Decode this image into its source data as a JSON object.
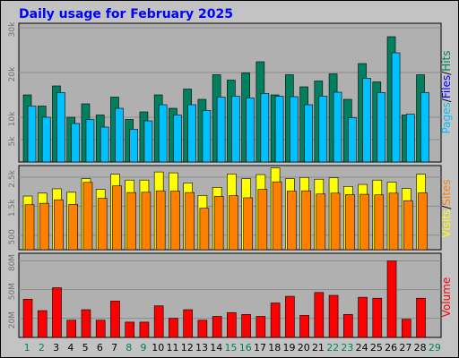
{
  "colors": {
    "background": "#c3c3c3",
    "panel": "#b0b0b0",
    "pages": "#00c0ff",
    "files": "#0000ff",
    "hits": "#00805f",
    "visits": "#ffff00",
    "sites": "#ff8000",
    "volume": "#ff0000",
    "weekday_label": "#000000",
    "weekend_label": "#00805f",
    "title": "#0000ff"
  },
  "chart_data": {
    "type": "bar",
    "title": "Daily usage for February 2025",
    "categories": [
      "1",
      "2",
      "3",
      "4",
      "5",
      "6",
      "7",
      "8",
      "9",
      "10",
      "11",
      "12",
      "13",
      "14",
      "15",
      "16",
      "17",
      "18",
      "19",
      "20",
      "21",
      "22",
      "23",
      "24",
      "25",
      "26",
      "27",
      "28",
      "29"
    ],
    "weekend_days": [
      "1",
      "2",
      "8",
      "9",
      "15",
      "16",
      "22",
      "23",
      "29"
    ],
    "panels": [
      {
        "name": "hits",
        "legend": [
          {
            "text": "Pages",
            "color": "#00c0ff"
          },
          {
            "text": "/",
            "color": "#000000"
          },
          {
            "text": "Files",
            "color": "#0000ff"
          },
          {
            "text": "/",
            "color": "#000000"
          },
          {
            "text": "Hits",
            "color": "#00805f"
          }
        ],
        "yticks": [
          "5k",
          "10k",
          "20k",
          "30k"
        ],
        "ytick_values": [
          5000,
          10000,
          20000,
          30000
        ],
        "ylim": [
          0,
          31000
        ],
        "series": [
          {
            "name": "Hits",
            "color": "#00805f",
            "values": [
              15000,
              12500,
              17000,
              10000,
              13000,
              10500,
              14500,
              9500,
              11200,
              15000,
              12000,
              16300,
              14000,
              19500,
              18300,
              19900,
              22400,
              15000,
              19500,
              16800,
              18100,
              19700,
              14000,
              22000,
              17900,
              28000,
              10500,
              19500,
              0
            ]
          },
          {
            "name": "Files",
            "color": "#0000ff",
            "values": [
              5000,
              4000,
              5600,
              3100,
              5800,
              4200,
              4800,
              3000,
              3800,
              5500,
              3800,
              5000,
              4700,
              4500,
              3700,
              4900,
              3400,
              6800,
              6900,
              3600,
              5800,
              4800,
              4800,
              4600,
              7400,
              13500,
              3900,
              7000,
              0
            ]
          },
          {
            "name": "Pages",
            "color": "#00c0ff",
            "values": [
              12500,
              10000,
              15500,
              8600,
              9500,
              7800,
              12000,
              7300,
              9200,
              12800,
              10500,
              12800,
              11500,
              14500,
              14700,
              14300,
              15300,
              14700,
              14600,
              12800,
              14700,
              15600,
              9900,
              18700,
              15500,
              24400,
              10700,
              15500,
              0
            ]
          }
        ]
      },
      {
        "name": "visits",
        "legend": [
          {
            "text": "Visits",
            "color": "#ffff00"
          },
          {
            "text": "/",
            "color": "#000000"
          },
          {
            "text": "Sites",
            "color": "#ff8000"
          }
        ],
        "yticks": [
          "500",
          "1.5k",
          "2.5k"
        ],
        "ytick_values": [
          500,
          1500,
          2500
        ],
        "ylim": [
          0,
          2900
        ],
        "series": [
          {
            "name": "Visits",
            "color": "#ffff00",
            "values": [
              1850,
              1950,
              2100,
              1980,
              2450,
              2080,
              2600,
              2400,
              2400,
              2680,
              2650,
              2300,
              1870,
              2150,
              2610,
              2450,
              2590,
              2820,
              2450,
              2490,
              2430,
              2480,
              2180,
              2250,
              2400,
              2330,
              2110,
              2600,
              0
            ]
          },
          {
            "name": "Sites",
            "color": "#ff8000",
            "values": [
              1550,
              1600,
              1720,
              1560,
              2320,
              1770,
              2200,
              1970,
              1980,
              2030,
              2020,
              1970,
              1430,
              1840,
              1860,
              1790,
              2080,
              2340,
              2020,
              2030,
              1920,
              1950,
              1900,
              1910,
              1890,
              1950,
              1690,
              1960,
              0
            ]
          }
        ]
      },
      {
        "name": "volume",
        "legend": [
          {
            "text": "Volume",
            "color": "#ff0000"
          }
        ],
        "yticks": [
          "20M",
          "50M",
          "80M"
        ],
        "ytick_values": [
          20000000,
          50000000,
          80000000
        ],
        "ylim": [
          0,
          88000000
        ],
        "series": [
          {
            "name": "Volume",
            "color": "#ff0000",
            "values": [
              40000000,
              28000000,
              52000000,
              18000000,
              29000000,
              18000000,
              38000000,
              16000000,
              16000000,
              33000000,
              20000000,
              29000000,
              18000000,
              22000000,
              26000000,
              24000000,
              22000000,
              36000000,
              43000000,
              23000000,
              47000000,
              44000000,
              24000000,
              42000000,
              41000000,
              80000000,
              19000000,
              41000000,
              0
            ]
          }
        ]
      }
    ]
  }
}
